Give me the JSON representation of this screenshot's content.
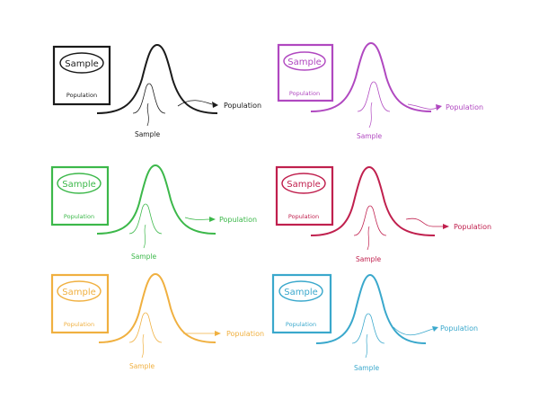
{
  "panels": [
    {
      "id": "black",
      "color": "#1a1a1a",
      "sample_label": "Sample",
      "population_label": "Population",
      "curve_population_label": "Population",
      "curve_sample_label": "Sample"
    },
    {
      "id": "purple",
      "color": "#b048c0",
      "sample_label": "Sample",
      "population_label": "Population",
      "curve_population_label": "Population",
      "curve_sample_label": "Sample"
    },
    {
      "id": "green",
      "color": "#3cb84a",
      "sample_label": "Sample",
      "population_label": "Population",
      "curve_population_label": "Population",
      "curve_sample_label": "Sample"
    },
    {
      "id": "crimson",
      "color": "#c0204e",
      "sample_label": "Sample",
      "population_label": "Population",
      "curve_population_label": "Population",
      "curve_sample_label": "Sample"
    },
    {
      "id": "orange",
      "color": "#f0b040",
      "sample_label": "Sample",
      "population_label": "Population",
      "curve_population_label": "Population",
      "curve_sample_label": "Sample"
    },
    {
      "id": "blue",
      "color": "#3aa8cc",
      "sample_label": "Sample",
      "population_label": "Population",
      "curve_population_label": "Population",
      "curve_sample_label": "Sample"
    }
  ]
}
